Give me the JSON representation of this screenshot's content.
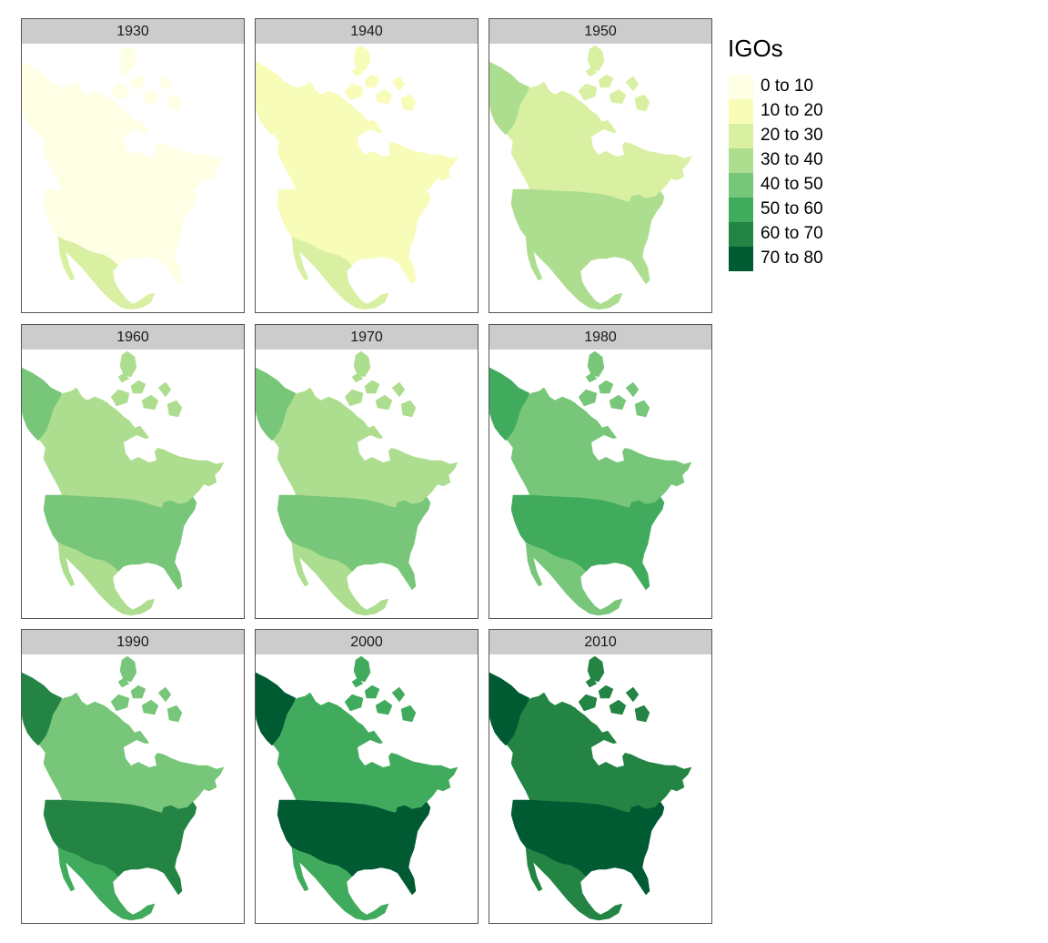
{
  "legend": {
    "title": "IGOs",
    "classes": [
      {
        "label": "0 to 10",
        "color": "#ffffe5"
      },
      {
        "label": "10 to 20",
        "color": "#f7fcb9"
      },
      {
        "label": "20 to 30",
        "color": "#d9f0a3"
      },
      {
        "label": "30 to 40",
        "color": "#addd8e"
      },
      {
        "label": "40 to 50",
        "color": "#78c679"
      },
      {
        "label": "50 to 60",
        "color": "#41ab5d"
      },
      {
        "label": "60 to 70",
        "color": "#238443"
      },
      {
        "label": "70 to 80",
        "color": "#005a32"
      }
    ]
  },
  "panels": [
    {
      "year": "1930",
      "alaska_class": 0,
      "canada_class": 0,
      "usa_class": 0,
      "mexico_class": 2
    },
    {
      "year": "1940",
      "alaska_class": 1,
      "canada_class": 1,
      "usa_class": 1,
      "mexico_class": 2
    },
    {
      "year": "1950",
      "alaska_class": 3,
      "canada_class": 2,
      "usa_class": 3,
      "mexico_class": 3
    },
    {
      "year": "1960",
      "alaska_class": 4,
      "canada_class": 3,
      "usa_class": 4,
      "mexico_class": 3
    },
    {
      "year": "1970",
      "alaska_class": 4,
      "canada_class": 3,
      "usa_class": 4,
      "mexico_class": 3
    },
    {
      "year": "1980",
      "alaska_class": 5,
      "canada_class": 4,
      "usa_class": 5,
      "mexico_class": 4
    },
    {
      "year": "1990",
      "alaska_class": 6,
      "canada_class": 4,
      "usa_class": 6,
      "mexico_class": 5
    },
    {
      "year": "2000",
      "alaska_class": 7,
      "canada_class": 5,
      "usa_class": 7,
      "mexico_class": 5
    },
    {
      "year": "2010",
      "alaska_class": 7,
      "canada_class": 6,
      "usa_class": 7,
      "mexico_class": 6
    }
  ]
}
